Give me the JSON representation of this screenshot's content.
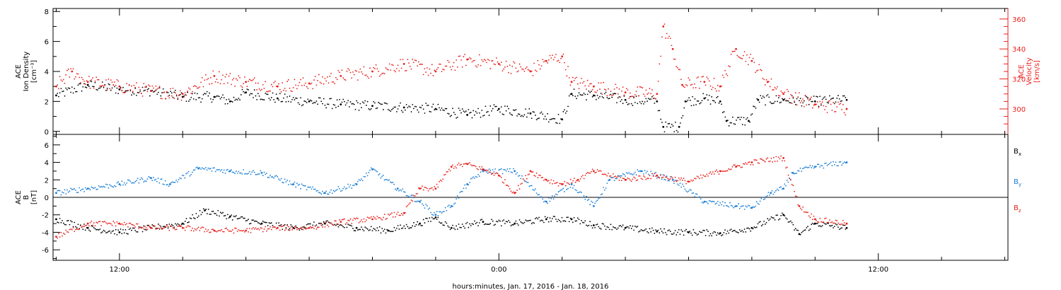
{
  "colors": {
    "black": "#000000",
    "red": "#e8201c",
    "blue": "#1b7fd6",
    "axis": "#000000"
  },
  "xaxis": {
    "label": "hours:minutes, Jan. 17, 2016 - Jan. 18, 2016",
    "range_hours": [
      9.9,
      40.1
    ],
    "major_ticks": [
      {
        "h": 12,
        "label": "12:00"
      },
      {
        "h": 24,
        "label": "0:00"
      },
      {
        "h": 36,
        "label": "12:00"
      }
    ],
    "minor_step_hours": 2
  },
  "chart_data": [
    {
      "type": "scatter",
      "panel": "top",
      "ylabel_left": [
        "ACE",
        "Ion Density",
        "[cm⁻³]"
      ],
      "ylabel_right": [
        "ACE",
        "Velocity",
        "[km/s]"
      ],
      "ylim_left": [
        -0.2,
        8.2
      ],
      "ylim_right": [
        283,
        367
      ],
      "yticks_left": [
        0,
        2,
        4,
        6,
        8
      ],
      "yticks_right": [
        300,
        320,
        340,
        360
      ],
      "series": [
        {
          "axis": "left",
          "color": "black",
          "jitter": 0.35,
          "points": [
            [
              10.0,
              2.4
            ],
            [
              11.0,
              3.1
            ],
            [
              12.0,
              2.8
            ],
            [
              13.0,
              2.7
            ],
            [
              14.0,
              2.3
            ],
            [
              15.0,
              2.3
            ],
            [
              15.5,
              2.0
            ],
            [
              16.0,
              2.6
            ],
            [
              17.0,
              2.2
            ],
            [
              18.0,
              2.0
            ],
            [
              19.0,
              1.8
            ],
            [
              20.0,
              1.7
            ],
            [
              21.0,
              1.6
            ],
            [
              22.0,
              1.5
            ],
            [
              23.0,
              1.1
            ],
            [
              24.0,
              1.5
            ],
            [
              25.0,
              1.2
            ],
            [
              26.0,
              0.8
            ],
            [
              26.3,
              2.5
            ],
            [
              27.0,
              2.4
            ],
            [
              28.0,
              2.1
            ],
            [
              29.0,
              2.0
            ],
            [
              29.2,
              0.3
            ],
            [
              29.7,
              0.3
            ],
            [
              29.9,
              2.0
            ],
            [
              30.5,
              2.2
            ],
            [
              31.0,
              2.0
            ],
            [
              31.2,
              0.7
            ],
            [
              31.9,
              0.7
            ],
            [
              32.2,
              2.1
            ],
            [
              33.0,
              2.1
            ],
            [
              34.0,
              2.0
            ],
            [
              35.0,
              2.1
            ]
          ]
        },
        {
          "axis": "right",
          "color": "red",
          "jitter": 4.5,
          "points": [
            [
              10.0,
              315
            ],
            [
              10.5,
              325
            ],
            [
              11.0,
              318
            ],
            [
              12.0,
              315
            ],
            [
              13.0,
              312
            ],
            [
              14.0,
              310
            ],
            [
              15.0,
              322
            ],
            [
              16.0,
              318
            ],
            [
              17.0,
              315
            ],
            [
              18.0,
              317
            ],
            [
              19.0,
              322
            ],
            [
              20.0,
              325
            ],
            [
              21.0,
              330
            ],
            [
              22.0,
              325
            ],
            [
              23.0,
              333
            ],
            [
              24.0,
              330
            ],
            [
              25.0,
              325
            ],
            [
              25.5,
              332
            ],
            [
              26.0,
              335
            ],
            [
              26.3,
              318
            ],
            [
              27.0,
              315
            ],
            [
              28.0,
              311
            ],
            [
              29.0,
              310
            ],
            [
              29.2,
              355
            ],
            [
              29.5,
              340
            ],
            [
              29.8,
              316
            ],
            [
              30.5,
              318
            ],
            [
              31.0,
              315
            ],
            [
              31.5,
              340
            ],
            [
              32.0,
              332
            ],
            [
              32.5,
              318
            ],
            [
              33.0,
              310
            ],
            [
              34.0,
              303
            ],
            [
              35.0,
              300
            ]
          ]
        }
      ]
    },
    {
      "type": "scatter",
      "panel": "bottom",
      "ylabel_left": [
        "ACE",
        "B",
        "[nT]"
      ],
      "ylim": [
        -7.2,
        7.2
      ],
      "yticks": [
        -6,
        -4,
        -2,
        0,
        2,
        4,
        6
      ],
      "zero_line": true,
      "series": [
        {
          "name": "B",
          "sub": "x",
          "color": "black",
          "jitter": 0.35,
          "points": [
            [
              10.0,
              -2.5
            ],
            [
              11.0,
              -3.5
            ],
            [
              12.0,
              -4.0
            ],
            [
              13.0,
              -3.5
            ],
            [
              14.0,
              -3.0
            ],
            [
              14.7,
              -1.5
            ],
            [
              15.5,
              -2.2
            ],
            [
              16.5,
              -3.0
            ],
            [
              17.5,
              -3.5
            ],
            [
              18.5,
              -3.0
            ],
            [
              19.5,
              -3.5
            ],
            [
              20.5,
              -3.8
            ],
            [
              21.5,
              -3.0
            ],
            [
              22.0,
              -2.3
            ],
            [
              22.5,
              -3.5
            ],
            [
              23.5,
              -2.8
            ],
            [
              24.5,
              -3.0
            ],
            [
              25.5,
              -2.5
            ],
            [
              26.3,
              -2.5
            ],
            [
              27.0,
              -3.2
            ],
            [
              28.0,
              -3.5
            ],
            [
              29.0,
              -3.9
            ],
            [
              30.0,
              -4.0
            ],
            [
              31.0,
              -4.1
            ],
            [
              32.0,
              -3.5
            ],
            [
              33.0,
              -2.0
            ],
            [
              33.5,
              -4.2
            ],
            [
              34.0,
              -3.0
            ],
            [
              35.0,
              -3.5
            ]
          ]
        },
        {
          "name": "B",
          "sub": "y",
          "color": "blue",
          "jitter": 0.3,
          "points": [
            [
              10.0,
              0.5
            ],
            [
              11.0,
              1.0
            ],
            [
              12.0,
              1.5
            ],
            [
              13.0,
              2.2
            ],
            [
              13.6,
              1.5
            ],
            [
              14.5,
              3.3
            ],
            [
              15.5,
              3.0
            ],
            [
              16.5,
              2.8
            ],
            [
              17.5,
              1.5
            ],
            [
              18.5,
              0.5
            ],
            [
              19.5,
              1.5
            ],
            [
              20.0,
              3.2
            ],
            [
              20.8,
              1.0
            ],
            [
              21.5,
              -0.5
            ],
            [
              22.0,
              -2.0
            ],
            [
              22.5,
              -1.0
            ],
            [
              23.0,
              1.5
            ],
            [
              23.5,
              3.0
            ],
            [
              24.5,
              3.0
            ],
            [
              25.5,
              -0.5
            ],
            [
              26.3,
              1.5
            ],
            [
              27.0,
              -1.0
            ],
            [
              27.5,
              2.0
            ],
            [
              28.5,
              3.0
            ],
            [
              29.5,
              2.0
            ],
            [
              30.5,
              -0.5
            ],
            [
              31.5,
              -1.0
            ],
            [
              32.0,
              -1.2
            ],
            [
              32.6,
              0.5
            ],
            [
              33.0,
              1.0
            ],
            [
              33.3,
              2.8
            ],
            [
              34.0,
              3.5
            ],
            [
              35.0,
              4.0
            ]
          ]
        },
        {
          "name": "B",
          "sub": "z",
          "color": "red",
          "jitter": 0.3,
          "points": [
            [
              10.0,
              -4.5
            ],
            [
              11.0,
              -3.0
            ],
            [
              12.0,
              -3.0
            ],
            [
              13.0,
              -3.5
            ],
            [
              14.0,
              -3.5
            ],
            [
              15.0,
              -3.8
            ],
            [
              16.0,
              -3.8
            ],
            [
              17.0,
              -3.5
            ],
            [
              18.0,
              -3.5
            ],
            [
              19.0,
              -2.8
            ],
            [
              20.0,
              -2.5
            ],
            [
              21.0,
              -1.8
            ],
            [
              21.5,
              1.0
            ],
            [
              22.0,
              1.0
            ],
            [
              22.5,
              3.5
            ],
            [
              23.0,
              3.8
            ],
            [
              23.5,
              3.2
            ],
            [
              24.0,
              2.5
            ],
            [
              24.5,
              0.5
            ],
            [
              25.0,
              3.0
            ],
            [
              25.5,
              2.0
            ],
            [
              26.0,
              1.5
            ],
            [
              26.5,
              2.0
            ],
            [
              27.0,
              3.0
            ],
            [
              28.0,
              2.0
            ],
            [
              29.0,
              2.5
            ],
            [
              30.0,
              1.8
            ],
            [
              31.0,
              3.0
            ],
            [
              31.5,
              3.5
            ],
            [
              32.0,
              4.0
            ],
            [
              33.0,
              4.5
            ],
            [
              33.5,
              -1.0
            ],
            [
              34.0,
              -2.5
            ],
            [
              35.0,
              -3.0
            ]
          ]
        }
      ],
      "legend": {
        "placement": "right"
      }
    }
  ]
}
